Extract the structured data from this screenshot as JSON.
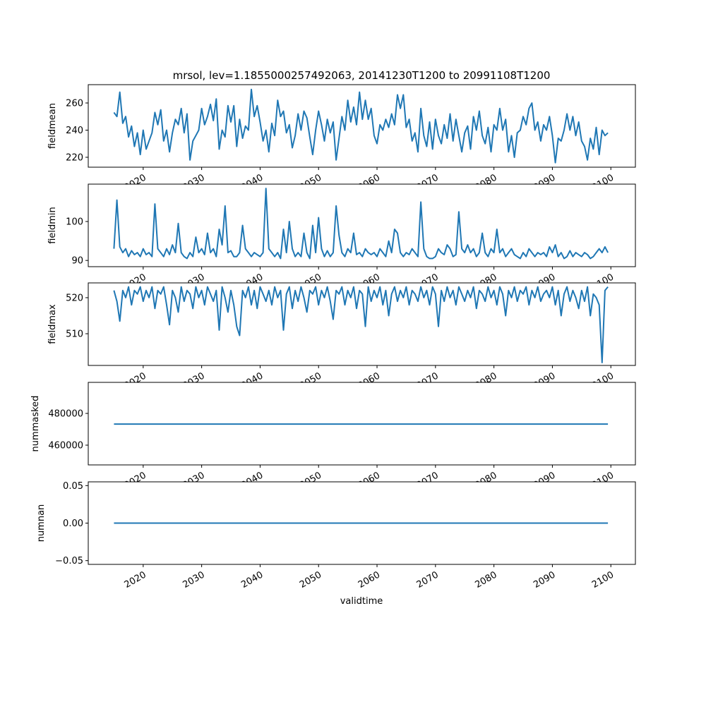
{
  "chart_data": {
    "type": "line",
    "title": "mrsol, lev=1.1855000257492063, 20141230T1200 to 20991108T1200",
    "xlabel": "validtime",
    "xlim": [
      2010.6,
      2104.2
    ],
    "x_ticks": [
      "2020",
      "2030",
      "2040",
      "2050",
      "2060",
      "2070",
      "2080",
      "2090",
      "2100"
    ],
    "x_tick_values": [
      2020,
      2030,
      2040,
      2050,
      2060,
      2070,
      2080,
      2090,
      2100
    ],
    "x_start": 2015.0,
    "x_step": 0.5,
    "line_color": "#1f77b4",
    "panels": [
      {
        "ylabel": "fieldmean",
        "ylim": [
          212.7,
          273.5
        ],
        "yticks": [
          220,
          240,
          260
        ],
        "ytick_labels": [
          "220",
          "240",
          "260"
        ],
        "values": [
          253,
          250,
          268,
          245,
          250,
          235,
          243,
          228,
          238,
          222,
          240,
          226,
          232,
          238,
          253,
          244,
          255,
          232,
          240,
          224,
          238,
          248,
          244,
          256,
          238,
          252,
          218,
          232,
          236,
          240,
          256,
          244,
          250,
          259,
          247,
          263,
          226,
          240,
          235,
          258,
          246,
          258,
          228,
          248,
          234,
          243,
          240,
          270,
          250,
          258,
          246,
          232,
          240,
          224,
          245,
          236,
          262,
          250,
          254,
          238,
          244,
          227,
          236,
          252,
          240,
          254,
          249,
          235,
          222,
          240,
          254,
          244,
          232,
          248,
          238,
          246,
          218,
          234,
          250,
          240,
          262,
          246,
          257,
          244,
          268,
          248,
          262,
          248,
          256,
          236,
          230,
          244,
          240,
          248,
          242,
          252,
          244,
          266,
          256,
          266,
          242,
          248,
          232,
          238,
          224,
          256,
          236,
          228,
          246,
          226,
          248,
          236,
          230,
          244,
          234,
          252,
          232,
          248,
          236,
          224,
          238,
          243,
          226,
          250,
          240,
          254,
          236,
          230,
          242,
          224,
          244,
          240,
          256,
          240,
          248,
          224,
          236,
          220,
          238,
          240,
          250,
          244,
          256,
          260,
          240,
          246,
          232,
          244,
          240,
          250,
          236,
          216,
          234,
          232,
          240,
          252,
          240,
          250,
          236,
          246,
          232,
          228,
          218,
          234,
          226,
          242,
          222,
          240,
          236,
          238
        ]
      },
      {
        "ylabel": "fieldmin",
        "ylim": [
          88.4,
          109.6
        ],
        "yticks": [
          90,
          100
        ],
        "ytick_labels": [
          "90",
          "100"
        ],
        "values": [
          93,
          105.5,
          93.5,
          92,
          93,
          91,
          92.5,
          91.5,
          92,
          91,
          93,
          91.5,
          92,
          91,
          104.5,
          93,
          92,
          91,
          93,
          91.5,
          94,
          92,
          99.5,
          92,
          91,
          90.5,
          92,
          91,
          96,
          92,
          93,
          91.5,
          97,
          92,
          93,
          91,
          98,
          94,
          104,
          92,
          92.5,
          91,
          91,
          92,
          99,
          93,
          92,
          91,
          92,
          91.5,
          91,
          92,
          108.5,
          93,
          92,
          91,
          92,
          90.5,
          98,
          92,
          100,
          93,
          91,
          92,
          91,
          97,
          92,
          90.5,
          99,
          92,
          101,
          93,
          91,
          92.5,
          91,
          92,
          104,
          96.5,
          92,
          91,
          93,
          92,
          97,
          91.5,
          92,
          91,
          93,
          92,
          91.5,
          92,
          91,
          93,
          92,
          91,
          95,
          92,
          98,
          97,
          92,
          91,
          92,
          91.5,
          93,
          92,
          91,
          105,
          93,
          91,
          90.5,
          90.5,
          91,
          93,
          92,
          91.5,
          94,
          93,
          91,
          91.5,
          102.5,
          93,
          92,
          94,
          92,
          93,
          91,
          92,
          97,
          92,
          91,
          93,
          92,
          98,
          92,
          93,
          91,
          92,
          93,
          91.5,
          91,
          90.5,
          92,
          91,
          93,
          92,
          91,
          92,
          91.5,
          92,
          91,
          93.5,
          92,
          94,
          91,
          92,
          90.5,
          91,
          92.5,
          91,
          92,
          91.5,
          91,
          92,
          91.5,
          90.5,
          91,
          92,
          93,
          92,
          93.5,
          92
        ]
      },
      {
        "ylabel": "fieldmax",
        "ylim": [
          501.2,
          524.1
        ],
        "yticks": [
          510,
          520
        ],
        "ytick_labels": [
          "510",
          "520"
        ],
        "values": [
          522,
          519,
          513.5,
          522,
          520,
          523,
          518,
          522,
          521,
          523,
          519,
          522,
          520,
          523,
          517,
          522,
          521,
          523,
          518,
          512.5,
          522,
          520,
          516,
          523,
          519,
          522,
          521,
          517,
          523,
          520,
          522,
          518,
          523,
          521,
          519,
          522,
          511,
          523,
          520,
          516,
          522,
          518,
          512,
          509.5,
          522,
          520,
          523,
          518,
          522,
          517,
          523,
          521,
          519,
          522,
          518,
          523,
          520,
          522,
          511,
          521,
          523,
          517,
          522,
          519,
          523,
          520,
          516,
          522,
          521,
          523,
          518,
          522,
          520,
          523,
          519,
          514,
          522,
          521,
          523,
          518,
          522,
          520,
          523,
          517,
          522,
          521,
          512,
          523,
          519,
          522,
          520,
          523,
          518,
          522,
          515,
          521,
          523,
          519,
          522,
          520,
          523,
          518,
          522,
          521,
          519,
          523,
          520,
          522,
          518,
          523,
          521,
          512,
          522,
          519,
          523,
          520,
          522,
          518,
          523,
          521,
          519,
          522,
          520,
          523,
          517,
          522,
          521,
          519,
          523,
          520,
          522,
          518,
          523,
          521,
          515,
          522,
          520,
          523,
          519,
          522,
          521,
          523,
          518,
          522,
          520,
          523,
          519,
          521,
          522,
          520,
          523,
          518,
          522,
          515,
          521,
          523,
          519,
          522,
          520,
          517,
          522,
          519,
          523,
          515,
          521,
          520,
          518,
          502,
          522,
          523
        ]
      },
      {
        "ylabel": "nummasked",
        "ylim": [
          447556,
          499556
        ],
        "yticks": [
          460000,
          480000
        ],
        "ytick_labels": [
          "460000",
          "480000"
        ],
        "constant": 473300
      },
      {
        "ylabel": "numnan",
        "ylim": [
          -0.055,
          0.055
        ],
        "yticks": [
          -0.05,
          0,
          0.05
        ],
        "ytick_labels": [
          "−0.05",
          "0.00",
          "0.05"
        ],
        "constant": 0
      }
    ]
  }
}
